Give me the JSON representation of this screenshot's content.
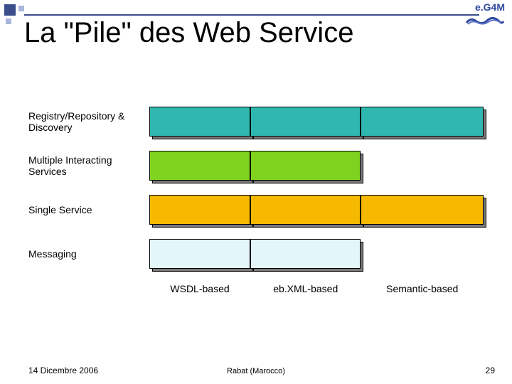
{
  "logo_text": "e.G4M",
  "logo_color": "#2f4aa0",
  "title": "La \"Pile\" des Web Service",
  "title_fontsize": 40,
  "rows": [
    {
      "label": "Registry/Repository & Discovery",
      "boxes": 3,
      "fill": "#2fb8b0"
    },
    {
      "label": "Multiple Interacting Services",
      "boxes": 2,
      "fill": "#7fd31f"
    },
    {
      "label": "Single Service",
      "boxes": 3,
      "fill": "#f6b900"
    },
    {
      "label": "Messaging",
      "boxes": 2,
      "fill": "#e3f7fb"
    }
  ],
  "columns": [
    "WSDL-based",
    "eb.XML-based",
    "Semantic-based"
  ],
  "box_border": "#000000",
  "shadow_fill": "#7a7a7a",
  "footer": {
    "date": "14 Dicembre 2006",
    "place": "Rabat (Marocco)",
    "page": "29"
  },
  "label_fontsize": 14,
  "column_fontsize": 14,
  "footer_fontsize": 12
}
